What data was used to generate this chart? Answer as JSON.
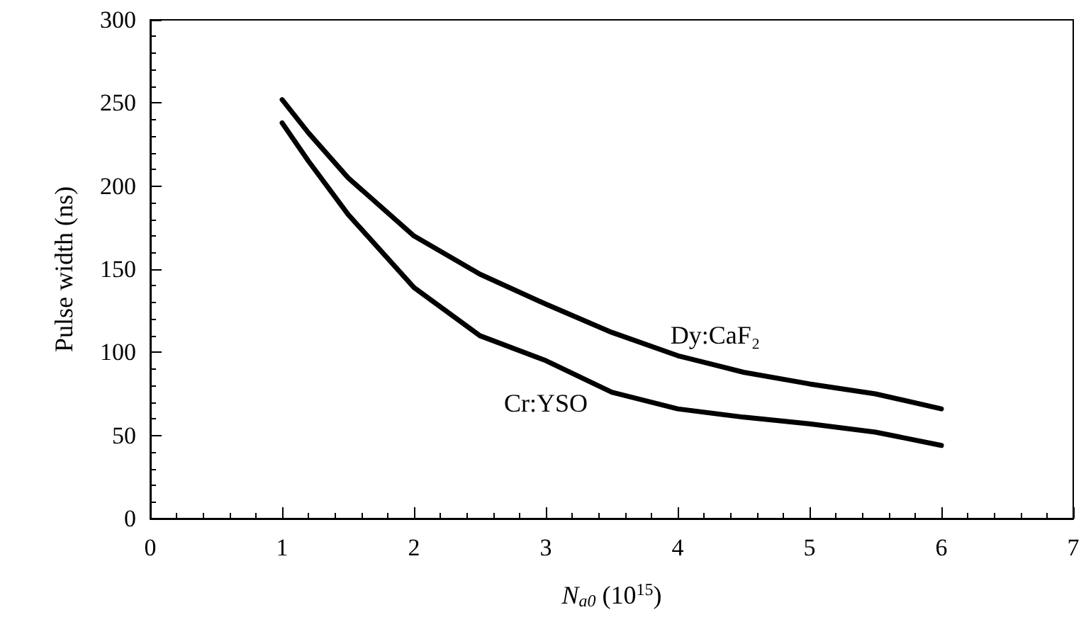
{
  "chart_data": {
    "type": "line",
    "xlabel": "N$_{a0}$ (10$^{15}$)",
    "ylabel": "Pulse width (ns)",
    "xlim": [
      0,
      7
    ],
    "xticks": [
      0,
      1,
      2,
      3,
      4,
      5,
      6,
      7
    ],
    "ylim": [
      0,
      300
    ],
    "yticks": [
      0,
      50,
      100,
      150,
      200,
      250,
      300
    ],
    "grid": false,
    "legend": false,
    "marker": "none",
    "line_style": "solid",
    "series": [
      {
        "name": "Dy:CaF₂",
        "color": "#000000",
        "x": [
          1,
          1.2,
          1.5,
          2,
          2.5,
          3,
          3.5,
          4,
          4.5,
          5,
          5.5,
          6
        ],
        "values": [
          252,
          232,
          205,
          170,
          147,
          129,
          112,
          98,
          88,
          81,
          75,
          66
        ]
      },
      {
        "name": "Cr:YSO",
        "color": "#000000",
        "x": [
          1,
          1.2,
          1.5,
          2,
          2.5,
          3,
          3.5,
          4,
          4.5,
          5,
          5.5,
          6
        ],
        "values": [
          238,
          215,
          183,
          139,
          110,
          95,
          76,
          66,
          61,
          57,
          52,
          44
        ]
      }
    ]
  }
}
